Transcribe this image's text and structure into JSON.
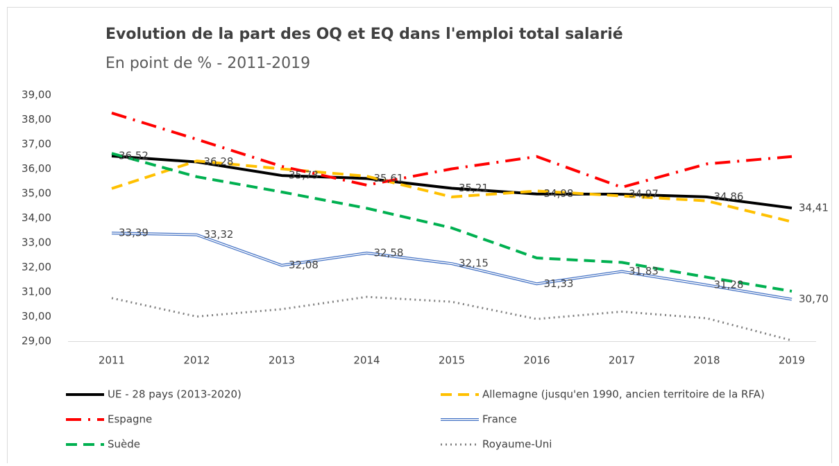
{
  "chart_data": {
    "type": "line",
    "title": "Evolution de la part des OQ et EQ dans l'emploi total salarié",
    "subtitle": "En point de %  - 2011-2019",
    "categories": [
      "2011",
      "2012",
      "2013",
      "2014",
      "2015",
      "2016",
      "2017",
      "2018",
      "2019"
    ],
    "ylim": [
      29,
      39
    ],
    "yticks": [
      {
        "value": 29,
        "label": "29,00"
      },
      {
        "value": 30,
        "label": "30,00"
      },
      {
        "value": 31,
        "label": "31,00"
      },
      {
        "value": 32,
        "label": "32,00"
      },
      {
        "value": 33,
        "label": "33,00"
      },
      {
        "value": 34,
        "label": "34,00"
      },
      {
        "value": 35,
        "label": "35,00"
      },
      {
        "value": 36,
        "label": "36,00"
      },
      {
        "value": 37,
        "label": "37,00"
      },
      {
        "value": 38,
        "label": "38,00"
      },
      {
        "value": 39,
        "label": "39,00"
      }
    ],
    "grid": false,
    "legend": "bottom",
    "series": [
      {
        "name": "UE - 28 pays (2013-2020)",
        "color": "#000000",
        "line_style": "solid",
        "values": [
          36.52,
          36.28,
          35.73,
          35.61,
          35.21,
          34.98,
          34.97,
          34.86,
          34.41
        ],
        "value_labels": [
          "36,52",
          "36,28",
          "35,73",
          "35,61",
          "35,21",
          "34,98",
          "34,97",
          "34,86",
          "34,41"
        ]
      },
      {
        "name": "Allemagne (jusqu'en 1990, ancien territoire de la RFA)",
        "color": "#ffc000",
        "line_style": "dashed",
        "values": [
          35.2,
          36.32,
          36.0,
          35.7,
          34.86,
          35.1,
          34.9,
          34.7,
          33.85
        ]
      },
      {
        "name": "Espagne",
        "color": "#ff0000",
        "line_style": "dashdot",
        "values": [
          38.27,
          37.2,
          36.1,
          35.34,
          36.0,
          36.5,
          35.25,
          36.2,
          36.5
        ]
      },
      {
        "name": "France",
        "color": "#4472c4",
        "line_style": "double",
        "values": [
          33.39,
          33.32,
          32.08,
          32.58,
          32.15,
          31.33,
          31.83,
          31.28,
          30.7
        ],
        "value_labels": [
          "33,39",
          "33,32",
          "32,08",
          "32,58",
          "32,15",
          "31,33",
          "31,83",
          "31,28",
          "30,70"
        ]
      },
      {
        "name": "Suède",
        "color": "#00b050",
        "line_style": "dashed",
        "values": [
          36.63,
          35.68,
          35.06,
          34.4,
          33.6,
          32.38,
          32.2,
          31.6,
          31.03
        ]
      },
      {
        "name": "Royaume-Uni",
        "color": "#7f7f7f",
        "line_style": "dotted",
        "values": [
          30.75,
          30.0,
          30.3,
          30.8,
          30.6,
          29.9,
          30.2,
          29.93,
          29.03
        ]
      }
    ]
  }
}
